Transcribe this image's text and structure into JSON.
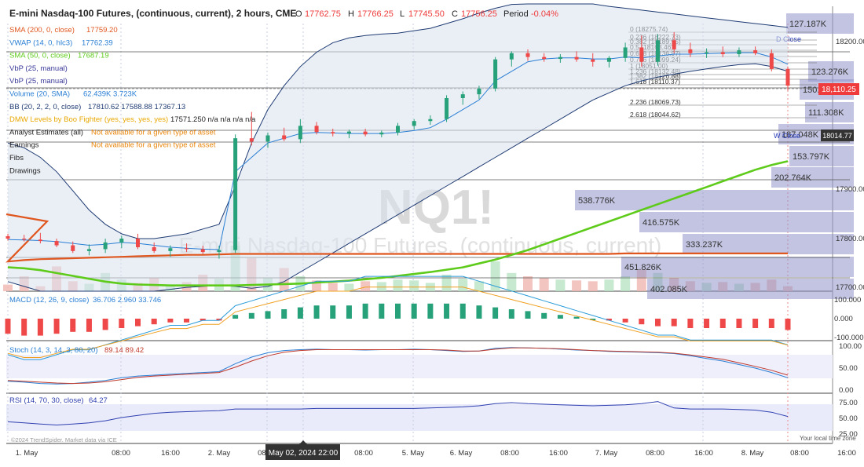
{
  "header": {
    "title": "E-mini Nasdaq-100 Futures, (continuous, current), 2 hours, CME",
    "o_label": "O",
    "o": "17762.75",
    "h_label": "H",
    "h": "17766.25",
    "l_label": "L",
    "l": "17745.50",
    "c_label": "C",
    "c": "17756.25",
    "period_label": "Period",
    "period": "-0.04%"
  },
  "watermark": {
    "symbol": "NQ1!",
    "name": "E-mini Nasdaq-100 Futures, (continuous, current)"
  },
  "legend": [
    {
      "label": "SMA (200, 0, close)",
      "value": "17759.20",
      "color": "#e0561f"
    },
    {
      "label": "VWAP (14, 0, hlc3)",
      "value": "17762.39",
      "color": "#2a7fd4"
    },
    {
      "label": "SMA (50, 0, close)",
      "value": "17687.19",
      "color": "#5ecb1b"
    },
    {
      "label": "VbP (25, manual)",
      "value": "",
      "color": "#3a3a9a"
    },
    {
      "label": "VbP (25, manual)",
      "value": "",
      "color": "#3a3a9a"
    },
    {
      "label": "Volume (20, SMA)",
      "value": "62.439K 3.723K",
      "color": "#2a7fd4"
    },
    {
      "label": "BB (20, 2, 2, 0, close)",
      "value": "17810.62 17588.88 17367.13",
      "color": "#1f3b73"
    },
    {
      "label": "DMW Levels by Boo Fighter (yes, yes, yes, yes)",
      "value": "17571.250 n/a n/a n/a n/a",
      "color": "#e8a800"
    },
    {
      "label": "Analyst Estimates (all)",
      "value": "Not available for a given type of asset",
      "color": "#222"
    },
    {
      "label": "Earnings",
      "value": "Not available for a given type of asset",
      "color": "#222"
    },
    {
      "label": "Fibs",
      "value": "",
      "color": "#222"
    },
    {
      "label": "Drawings",
      "value": "",
      "color": "#222"
    }
  ],
  "price_axis": {
    "ticks": [
      "18200.00",
      "17900.00",
      "17800.00",
      "17700.00"
    ],
    "last_price": "18,110.25",
    "wclose_price": "18014.77",
    "last_color": "#ef3b3b",
    "wclose_color": "#333333"
  },
  "fib_labels": [
    "0 (18275.74)",
    "0.236 (18222.73)",
    "0.382 (18189.95)",
    "0.5 (18163.46)",
    "0.618 (18136.97)",
    "0.786 (18099.24)",
    "1 (18051.00)",
    "1.236 (18132.48)",
    "1.382 (18126.88)",
    "1.618 (18110.37)",
    "2.236 (18069.73)",
    "2.618 (18044.62)"
  ],
  "level_labels": {
    "d_close": "D Close",
    "w_close": "W Close"
  },
  "vbp_labels": [
    "127.187K",
    "123.276K",
    "150.939K",
    "111.308K",
    "187.048K",
    "153.797K",
    "202.764K",
    "538.776K",
    "416.575K",
    "333.237K",
    "451.826K",
    "402.085K"
  ],
  "macd": {
    "label": "MACD (12, 26, 9, close)",
    "values": "36.706 2.960 33.746",
    "ticks": [
      "100.000",
      "0.000",
      "-100.000"
    ]
  },
  "stoch": {
    "label": "Stoch (14, 3, 14, 3, 80, 20)",
    "values": "89.14 89.42",
    "ticks": [
      "100.00",
      "50.00",
      "0.00"
    ]
  },
  "rsi": {
    "label": "RSI (14, 70, 30, close)",
    "value": "64.27",
    "ticks": [
      "75.00",
      "50.00",
      "25.00"
    ]
  },
  "time_axis": {
    "ticks": [
      "1. May",
      "08:00",
      "16:00",
      "2. May",
      "08:00",
      "16:00",
      "08:00",
      "5. May",
      "6. May",
      "08:00",
      "16:00",
      "7. May",
      "08:00",
      "16:00",
      "8. May",
      "08:00",
      "16:00"
    ],
    "crosshair": "May 02, 2024 22:00"
  },
  "footer": {
    "credit": "©2024 TrendSpider. Market data via ICE",
    "local_time": "Your local time zone"
  },
  "chart_data": {
    "type": "candlestick",
    "title": "E-mini Nasdaq-100 Futures, (continuous, current), 2 hours, CME",
    "ylim": [
      17680,
      18240
    ],
    "candles": [
      {
        "o": 17795,
        "h": 17800,
        "l": 17786,
        "c": 17790
      },
      {
        "o": 17790,
        "h": 17798,
        "l": 17784,
        "c": 17788
      },
      {
        "o": 17788,
        "h": 17802,
        "l": 17780,
        "c": 17785
      },
      {
        "o": 17785,
        "h": 17790,
        "l": 17772,
        "c": 17776
      },
      {
        "o": 17776,
        "h": 17784,
        "l": 17760,
        "c": 17764
      },
      {
        "o": 17764,
        "h": 17778,
        "l": 17755,
        "c": 17768
      },
      {
        "o": 17768,
        "h": 17790,
        "l": 17760,
        "c": 17782
      },
      {
        "o": 17782,
        "h": 17796,
        "l": 17770,
        "c": 17790
      },
      {
        "o": 17790,
        "h": 17800,
        "l": 17768,
        "c": 17772
      },
      {
        "o": 17772,
        "h": 17782,
        "l": 17760,
        "c": 17764
      },
      {
        "o": 17764,
        "h": 17776,
        "l": 17752,
        "c": 17770
      },
      {
        "o": 17770,
        "h": 17780,
        "l": 17762,
        "c": 17768
      },
      {
        "o": 17768,
        "h": 17775,
        "l": 17758,
        "c": 17762
      },
      {
        "o": 17762,
        "h": 17775,
        "l": 17748,
        "c": 17766
      },
      {
        "o": 17766,
        "h": 18008,
        "l": 17760,
        "c": 18000
      },
      {
        "o": 18000,
        "h": 18055,
        "l": 17985,
        "c": 17993
      },
      {
        "o": 17993,
        "h": 18012,
        "l": 17980,
        "c": 18006
      },
      {
        "o": 18006,
        "h": 18022,
        "l": 17994,
        "c": 17998
      },
      {
        "o": 17998,
        "h": 18040,
        "l": 17990,
        "c": 18026
      },
      {
        "o": 18026,
        "h": 18034,
        "l": 18008,
        "c": 18013
      },
      {
        "o": 18013,
        "h": 18020,
        "l": 18004,
        "c": 18010
      },
      {
        "o": 18010,
        "h": 18018,
        "l": 18000,
        "c": 18014
      },
      {
        "o": 18014,
        "h": 18020,
        "l": 18004,
        "c": 18008
      },
      {
        "o": 18008,
        "h": 18016,
        "l": 18002,
        "c": 18012
      },
      {
        "o": 18012,
        "h": 18032,
        "l": 18006,
        "c": 18026
      },
      {
        "o": 18026,
        "h": 18040,
        "l": 18018,
        "c": 18036
      },
      {
        "o": 18036,
        "h": 18048,
        "l": 18028,
        "c": 18040
      },
      {
        "o": 18040,
        "h": 18090,
        "l": 18034,
        "c": 18084
      },
      {
        "o": 18084,
        "h": 18098,
        "l": 18070,
        "c": 18092
      },
      {
        "o": 18092,
        "h": 18110,
        "l": 18082,
        "c": 18104
      },
      {
        "o": 18104,
        "h": 18170,
        "l": 18098,
        "c": 18165
      },
      {
        "o": 18165,
        "h": 18182,
        "l": 18150,
        "c": 18178
      },
      {
        "o": 18178,
        "h": 18186,
        "l": 18162,
        "c": 18170
      },
      {
        "o": 18170,
        "h": 18178,
        "l": 18160,
        "c": 18166
      },
      {
        "o": 18166,
        "h": 18176,
        "l": 18158,
        "c": 18170
      },
      {
        "o": 18170,
        "h": 18182,
        "l": 18160,
        "c": 18165
      },
      {
        "o": 18165,
        "h": 18178,
        "l": 18150,
        "c": 18160
      },
      {
        "o": 18160,
        "h": 18172,
        "l": 18148,
        "c": 18168
      },
      {
        "o": 18168,
        "h": 18200,
        "l": 18160,
        "c": 18190
      },
      {
        "o": 18190,
        "h": 18215,
        "l": 18150,
        "c": 18160
      },
      {
        "o": 18160,
        "h": 18218,
        "l": 18152,
        "c": 18205
      },
      {
        "o": 18205,
        "h": 18222,
        "l": 18178,
        "c": 18186
      },
      {
        "o": 18186,
        "h": 18200,
        "l": 18170,
        "c": 18178
      },
      {
        "o": 18178,
        "h": 18188,
        "l": 18168,
        "c": 18180
      },
      {
        "o": 18180,
        "h": 18192,
        "l": 18170,
        "c": 18176
      },
      {
        "o": 18176,
        "h": 18190,
        "l": 18170,
        "c": 18184
      },
      {
        "o": 18184,
        "h": 18192,
        "l": 18174,
        "c": 18178
      },
      {
        "o": 18178,
        "h": 18186,
        "l": 18140,
        "c": 18145
      },
      {
        "o": 18145,
        "h": 18150,
        "l": 18100,
        "c": 18110
      }
    ],
    "volume": [
      8,
      18,
      6,
      30,
      12,
      9,
      22,
      14,
      10,
      16,
      8,
      11,
      20,
      15,
      55,
      40,
      16,
      28,
      18,
      13,
      10,
      9,
      12,
      11,
      14,
      13,
      10,
      20,
      15,
      12,
      36,
      22,
      18,
      16,
      14,
      13,
      12,
      14,
      18,
      26,
      22,
      16,
      12,
      10,
      11,
      9,
      10,
      14,
      6
    ],
    "sma200": [
      17742,
      17745,
      17747,
      17748,
      17749,
      17750,
      17751,
      17752,
      17753,
      17754,
      17755,
      17756,
      17756,
      17757,
      17758,
      17758,
      17758,
      17758,
      17758,
      17758,
      17758,
      17758,
      17758,
      17758,
      17758,
      17758,
      17758,
      17758,
      17758,
      17758,
      17758,
      17758,
      17758,
      17758,
      17758,
      17758,
      17758,
      17758,
      17759,
      17759,
      17759,
      17759,
      17759,
      17759,
      17759,
      17759,
      17759,
      17759,
      17759
    ],
    "sma50": [
      17730,
      17728,
      17724,
      17718,
      17712,
      17706,
      17700,
      17696,
      17694,
      17693,
      17692,
      17692,
      17692,
      17692,
      17692,
      17693,
      17694,
      17695,
      17696,
      17698,
      17700,
      17702,
      17705,
      17708,
      17712,
      17716,
      17720,
      17725,
      17730,
      17738,
      17746,
      17756,
      17766,
      17778,
      17790,
      17802,
      17814,
      17826,
      17838,
      17850,
      17862,
      17874,
      17886,
      17898,
      17910,
      17922,
      17934,
      17944,
      17952
    ],
    "bb_upper": [
      17990,
      17980,
      17960,
      17930,
      17890,
      17850,
      17820,
      17800,
      17790,
      17790,
      17795,
      17800,
      17810,
      17820,
      17900,
      17990,
      18060,
      18110,
      18150,
      18180,
      18200,
      18210,
      18215,
      18218,
      18220,
      18225,
      18230,
      18240,
      18250,
      18262,
      18272,
      18280,
      18286,
      18288,
      18288,
      18286,
      18282,
      18276,
      18272,
      18268,
      18264,
      18260,
      18256,
      18252,
      18248,
      18244,
      18240,
      18236,
      18232
    ],
    "bb_lower": [
      17700,
      17690,
      17680,
      17672,
      17668,
      17666,
      17668,
      17672,
      17676,
      17680,
      17684,
      17688,
      17690,
      17692,
      17690,
      17686,
      17690,
      17700,
      17720,
      17740,
      17760,
      17780,
      17800,
      17820,
      17840,
      17860,
      17880,
      17900,
      17920,
      17940,
      17960,
      17980,
      18000,
      18020,
      18040,
      18060,
      18080,
      18095,
      18110,
      18120,
      18128,
      18134,
      18140,
      18145,
      18150,
      18154,
      18156,
      18150,
      18140
    ],
    "vwap": [
      17788,
      17787,
      17786,
      17784,
      17780,
      17776,
      17778,
      17782,
      17780,
      17776,
      17772,
      17770,
      17768,
      17767,
      17930,
      17960,
      17990,
      18000,
      18010,
      18012,
      18011,
      18010,
      18010,
      18010,
      18012,
      18016,
      18022,
      18040,
      18060,
      18080,
      18120,
      18140,
      18160,
      18166,
      18168,
      18168,
      18166,
      18166,
      18170,
      18168,
      18172,
      18176,
      18176,
      18177,
      18178,
      18179,
      18179,
      18170,
      18155
    ],
    "macd_hist": [
      -8,
      -9,
      -9,
      -8,
      -7,
      -7,
      -6,
      -5,
      -4,
      -3,
      -2,
      -2,
      -1,
      -1,
      2,
      3,
      4,
      5,
      6,
      7,
      7,
      7,
      8,
      8,
      8,
      8,
      8,
      8,
      8,
      7,
      6,
      5,
      4,
      3,
      2,
      1,
      0,
      -1,
      -2,
      -3,
      -4,
      -4,
      -5,
      -5,
      -5,
      -5,
      -5,
      -5,
      -6
    ],
    "stoch_k": [
      20,
      18,
      15,
      14,
      15,
      18,
      22,
      28,
      32,
      34,
      36,
      38,
      40,
      42,
      60,
      75,
      85,
      90,
      92,
      93,
      92,
      92,
      91,
      92,
      92,
      93,
      92,
      90,
      88,
      89,
      95,
      97,
      96,
      95,
      93,
      91,
      90,
      88,
      87,
      86,
      85,
      83,
      78,
      72,
      66,
      58,
      50,
      40,
      28
    ],
    "stoch_d": [
      22,
      20,
      18,
      16,
      15,
      16,
      19,
      24,
      29,
      32,
      34,
      36,
      38,
      40,
      52,
      66,
      78,
      86,
      90,
      92,
      92,
      92,
      92,
      92,
      92,
      92,
      92,
      91,
      89,
      89,
      93,
      96,
      96,
      95,
      94,
      92,
      90,
      89,
      88,
      87,
      86,
      84,
      80,
      75,
      70,
      62,
      54,
      45,
      34
    ],
    "rsi": [
      42,
      40,
      38,
      36,
      38,
      40,
      44,
      50,
      54,
      58,
      60,
      61,
      62,
      63,
      66,
      66,
      66,
      66,
      66,
      67,
      67,
      67,
      67,
      67,
      67,
      67,
      68,
      69,
      70,
      72,
      76,
      78,
      76,
      75,
      74,
      73,
      72,
      73,
      74,
      76,
      80,
      68,
      66,
      66,
      66,
      65,
      64,
      60,
      52
    ]
  }
}
